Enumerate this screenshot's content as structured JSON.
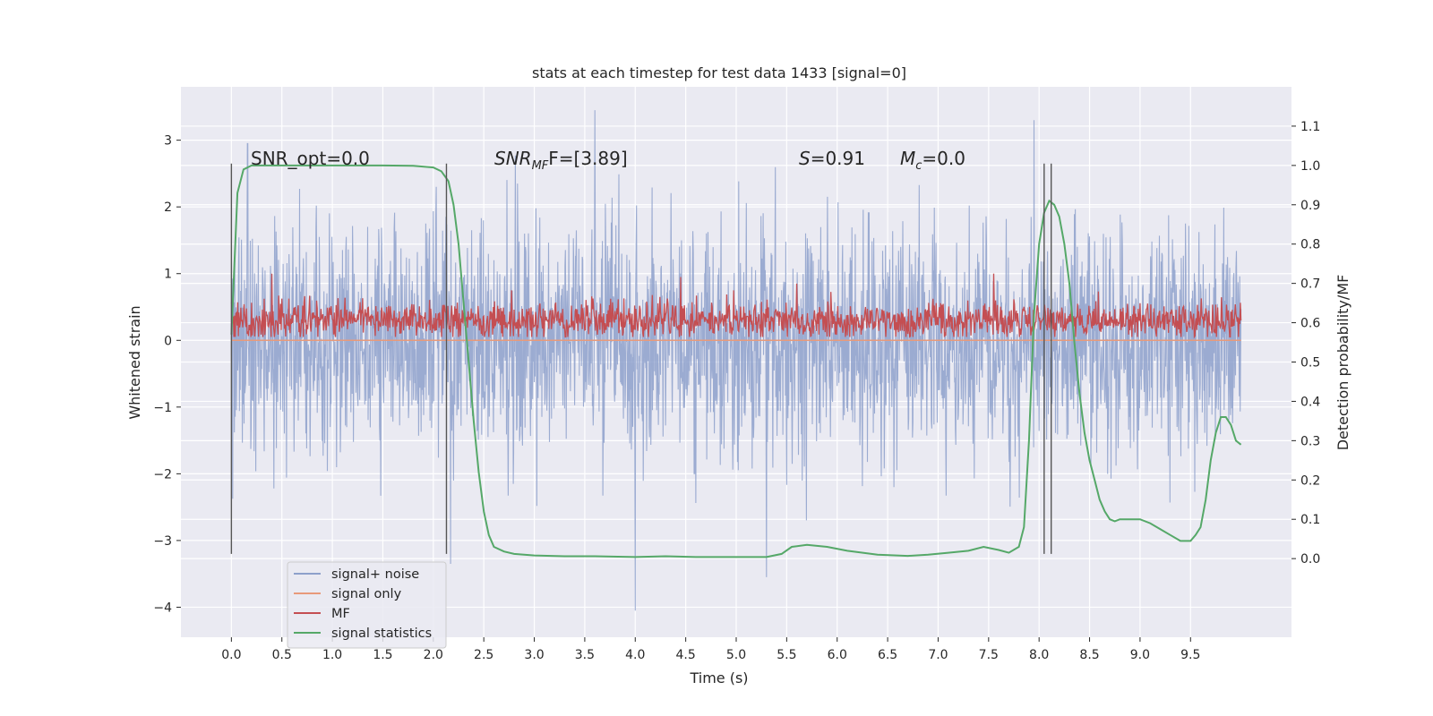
{
  "chart_data": {
    "type": "line",
    "title": "stats at each timestep for test data 1433 [signal=0]",
    "xlabel": "Time (s)",
    "ylabel": "Whitened strain",
    "ylabel_right": "Detection probability/MF",
    "xlim": [
      -0.5,
      10.5
    ],
    "ylim": [
      -4.45,
      3.8
    ],
    "ylim_right": [
      -0.2,
      1.2
    ],
    "x_ticks": [
      0.0,
      0.5,
      1.0,
      1.5,
      2.0,
      2.5,
      3.0,
      3.5,
      4.0,
      4.5,
      5.0,
      5.5,
      6.0,
      6.5,
      7.0,
      7.5,
      8.0,
      8.5,
      9.0,
      9.5
    ],
    "x_tick_labels": [
      "0.0",
      "0.5",
      "1.0",
      "1.5",
      "2.0",
      "2.5",
      "3.0",
      "3.5",
      "4.0",
      "4.5",
      "5.0",
      "5.5",
      "6.0",
      "6.5",
      "7.0",
      "7.5",
      "8.0",
      "8.5",
      "9.0",
      "9.5"
    ],
    "y_ticks": [
      -4,
      -3,
      -2,
      -1,
      0,
      1,
      2,
      3
    ],
    "y_tick_labels": [
      "−4",
      "−3",
      "−2",
      "−1",
      "0",
      "1",
      "2",
      "3"
    ],
    "y_right_ticks": [
      0.0,
      0.1,
      0.2,
      0.3,
      0.4,
      0.5,
      0.6,
      0.7,
      0.8,
      0.9,
      1.0,
      1.1
    ],
    "y_right_tick_labels": [
      "0.0",
      "0.1",
      "0.2",
      "0.3",
      "0.4",
      "0.5",
      "0.6",
      "0.7",
      "0.8",
      "0.9",
      "1.0",
      "1.1"
    ],
    "grid": true,
    "legend_position": "lower-left",
    "annotations": {
      "snr_opt": "SNR_opt=0.0",
      "snr_mf_main": "SNR",
      "snr_mf_sub": "MF",
      "snr_mf_rest": "F=[3.89]",
      "s_main": "S",
      "s_rest": "=0.91",
      "mc_main": "M",
      "mc_sub": "c",
      "mc_rest": "=0.0"
    },
    "vertical_lines_x": [
      0.0,
      2.13,
      8.05,
      8.12
    ],
    "vertical_lines_ylim": [
      -3.2,
      2.65
    ],
    "noise_envelope": {
      "x_range": [
        0.0,
        10.0
      ],
      "amplitude_typical": 1.5,
      "peaks": [
        {
          "x": 0.16,
          "y": 2.95
        },
        {
          "x": 2.17,
          "y": -3.35
        },
        {
          "x": 3.6,
          "y": 3.45
        },
        {
          "x": 4.0,
          "y": -4.05
        },
        {
          "x": 5.3,
          "y": -3.55
        },
        {
          "x": 7.95,
          "y": 3.3
        }
      ]
    },
    "mf_band": {
      "x_range": [
        0.0,
        10.0
      ],
      "center": 0.3,
      "low": 0.05,
      "high": 0.75,
      "peaks": [
        {
          "x": 0.4,
          "y": 1.0
        },
        {
          "x": 4.45,
          "y": 0.95
        },
        {
          "x": 5.6,
          "y": 0.85
        },
        {
          "x": 7.55,
          "y": 1.0
        }
      ]
    },
    "series": [
      {
        "name": "signal+ noise",
        "color": "#8da0cb"
      },
      {
        "name": "signal only",
        "color": "#e89a7a",
        "x": [
          0.0,
          10.0
        ],
        "y": [
          0.0,
          0.0
        ]
      },
      {
        "name": "MF",
        "color": "#c44e52"
      },
      {
        "name": "signal statistics",
        "color": "#55a868",
        "axis": "right",
        "x": [
          0.0,
          0.06,
          0.12,
          0.2,
          0.35,
          0.6,
          1.0,
          1.5,
          1.8,
          2.0,
          2.08,
          2.15,
          2.2,
          2.25,
          2.3,
          2.35,
          2.4,
          2.45,
          2.5,
          2.55,
          2.6,
          2.7,
          2.8,
          3.0,
          3.3,
          3.6,
          4.0,
          4.3,
          4.6,
          5.0,
          5.3,
          5.45,
          5.55,
          5.7,
          5.9,
          6.1,
          6.4,
          6.7,
          6.9,
          7.1,
          7.3,
          7.45,
          7.6,
          7.7,
          7.8,
          7.85,
          7.9,
          7.95,
          8.0,
          8.05,
          8.1,
          8.15,
          8.2,
          8.25,
          8.3,
          8.35,
          8.4,
          8.45,
          8.5,
          8.55,
          8.6,
          8.65,
          8.7,
          8.75,
          8.8,
          8.9,
          9.0,
          9.1,
          9.2,
          9.3,
          9.4,
          9.5,
          9.55,
          9.6,
          9.65,
          9.7,
          9.75,
          9.8,
          9.85,
          9.9,
          9.95,
          10.0
        ],
        "y": [
          0.57,
          0.93,
          0.99,
          1.0,
          1.0,
          1.0,
          1.0,
          1.0,
          0.999,
          0.995,
          0.985,
          0.96,
          0.9,
          0.8,
          0.65,
          0.5,
          0.35,
          0.22,
          0.12,
          0.06,
          0.03,
          0.018,
          0.012,
          0.008,
          0.006,
          0.006,
          0.004,
          0.006,
          0.004,
          0.004,
          0.004,
          0.012,
          0.03,
          0.035,
          0.03,
          0.02,
          0.01,
          0.007,
          0.01,
          0.015,
          0.02,
          0.03,
          0.022,
          0.015,
          0.03,
          0.08,
          0.3,
          0.62,
          0.8,
          0.88,
          0.91,
          0.9,
          0.87,
          0.8,
          0.7,
          0.55,
          0.42,
          0.32,
          0.25,
          0.2,
          0.15,
          0.12,
          0.1,
          0.095,
          0.1,
          0.1,
          0.1,
          0.09,
          0.075,
          0.06,
          0.045,
          0.045,
          0.06,
          0.08,
          0.15,
          0.25,
          0.32,
          0.36,
          0.36,
          0.34,
          0.3,
          0.29
        ]
      }
    ]
  }
}
